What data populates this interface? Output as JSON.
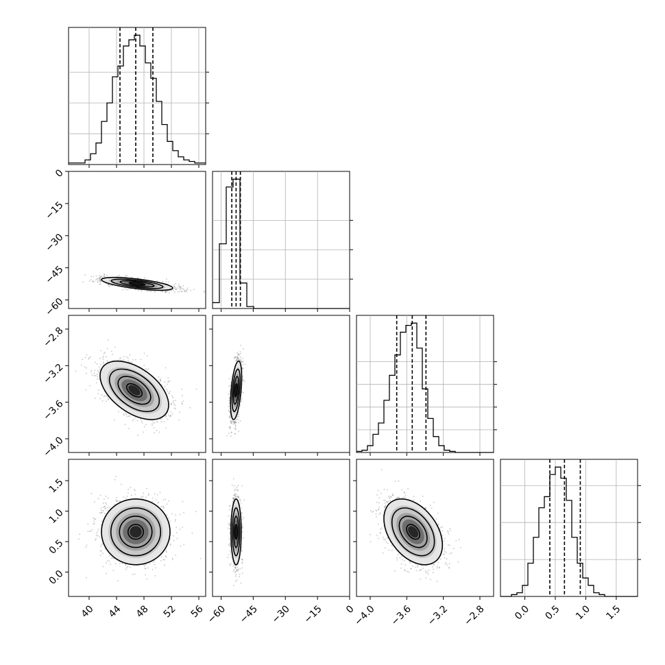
{
  "chart_data": {
    "type": "corner",
    "grid": true,
    "params": [
      {
        "range": [
          37,
          57
        ],
        "ticks": [
          40,
          44,
          48,
          52,
          56
        ],
        "tick_labels": [
          "40",
          "44",
          "48",
          "52",
          "56"
        ],
        "quantiles": [
          44.5,
          46.8,
          49.3
        ],
        "hist": [
          0.1,
          0.1,
          0.1,
          0.3,
          0.7,
          1.4,
          2.8,
          4.0,
          5.7,
          6.4,
          7.7,
          8.1,
          8.4,
          7.7,
          6.6,
          5.6,
          4.1,
          2.6,
          1.5,
          0.9,
          0.5,
          0.3,
          0.2,
          0.1,
          0.1
        ],
        "hist_ticks": [
          2,
          4,
          6
        ]
      },
      {
        "range": [
          -64,
          0
        ],
        "ticks": [
          -60,
          -45,
          -30,
          -15,
          0
        ],
        "tick_labels": [
          "−60",
          "−45",
          "−30",
          "−15",
          "0"
        ],
        "quantiles": [
          -55,
          -53,
          -51
        ],
        "hist": [
          0.3,
          3.3,
          6.2,
          6.6,
          1.3,
          0.1,
          0,
          0,
          0,
          0,
          0,
          0,
          0,
          0,
          0,
          0,
          0,
          0,
          0,
          0
        ],
        "hist_ticks": [
          1.5,
          3,
          4.5
        ]
      },
      {
        "range": [
          -4.15,
          -2.65
        ],
        "ticks": [
          -4.0,
          -3.6,
          -3.2,
          -2.8
        ],
        "tick_labels": [
          "−4.0",
          "−3.6",
          "−3.2",
          "−2.8"
        ],
        "quantiles": [
          -3.71,
          -3.54,
          -3.39
        ],
        "hist": [
          0.05,
          0.1,
          0.3,
          0.8,
          1.3,
          2.3,
          3.4,
          4.3,
          5.3,
          5.6,
          5.7,
          4.6,
          2.8,
          1.5,
          0.7,
          0.3,
          0.1,
          0.05,
          0,
          0,
          0,
          0,
          0,
          0,
          0
        ],
        "hist_ticks": [
          1,
          2,
          3,
          4
        ]
      },
      {
        "range": [
          -0.4,
          1.85
        ],
        "ticks": [
          0.0,
          0.5,
          1.0,
          1.5
        ],
        "tick_labels": [
          "0.0",
          "0.5",
          "1.0",
          "1.5"
        ],
        "quantiles": [
          0.41,
          0.65,
          0.91
        ],
        "hist": [
          0,
          0,
          0.05,
          0.1,
          0.3,
          0.9,
          1.6,
          2.4,
          2.7,
          3.3,
          3.5,
          3.2,
          2.6,
          1.6,
          0.9,
          0.5,
          0.3,
          0.1,
          0.05,
          0,
          0,
          0,
          0,
          0,
          0
        ],
        "hist_ticks": [
          1,
          2,
          3
        ]
      }
    ],
    "pairs": [
      {
        "row": 1,
        "col": 0,
        "center": [
          47.0,
          -52.5
        ],
        "std": [
          2.6,
          1.5
        ],
        "corr": -0.65
      },
      {
        "row": 2,
        "col": 0,
        "center": [
          46.6,
          -3.47
        ],
        "std": [
          2.5,
          0.16
        ],
        "corr": -0.5
      },
      {
        "row": 2,
        "col": 1,
        "center": [
          -53.0,
          -3.47
        ],
        "std": [
          1.3,
          0.16
        ],
        "corr": 0.45
      },
      {
        "row": 3,
        "col": 0,
        "center": [
          46.8,
          0.66
        ],
        "std": [
          2.5,
          0.27
        ],
        "corr": 0.0
      },
      {
        "row": 3,
        "col": 1,
        "center": [
          -53.0,
          0.66
        ],
        "std": [
          1.2,
          0.27
        ],
        "corr": 0.0
      },
      {
        "row": 3,
        "col": 2,
        "center": [
          -3.53,
          0.66
        ],
        "std": [
          0.16,
          0.27
        ],
        "corr": -0.4
      }
    ]
  }
}
